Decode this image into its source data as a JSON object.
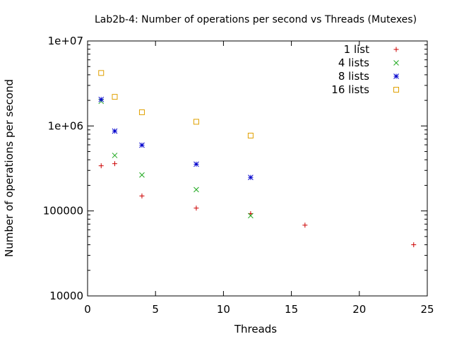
{
  "chart_data": {
    "type": "scatter",
    "title": "Lab2b-4: Number of operations per second vs Threads (Mutexes)",
    "xlabel": "Threads",
    "ylabel": "Number of operations per second",
    "xlim": [
      0,
      25
    ],
    "ylim": [
      10000,
      10000000
    ],
    "y_scale": "log",
    "x_ticks": [
      0,
      5,
      10,
      15,
      20,
      25
    ],
    "x_tick_labels": [
      "0",
      "5",
      "10",
      "15",
      "20",
      "25"
    ],
    "y_ticks": [
      10000,
      100000,
      1000000,
      10000000
    ],
    "y_tick_labels": [
      "10000",
      "100000",
      "1e+06",
      "1e+07"
    ],
    "grid": false,
    "legend_position": "top-right",
    "series": [
      {
        "name": "1 list",
        "marker": "plus",
        "color": "#cc0000",
        "points": [
          [
            1,
            340000
          ],
          [
            2,
            360000
          ],
          [
            4,
            150000
          ],
          [
            8,
            108000
          ],
          [
            12,
            93000
          ],
          [
            16,
            68000
          ],
          [
            24,
            40000
          ]
        ]
      },
      {
        "name": "4 lists",
        "marker": "cross",
        "color": "#22aa22",
        "points": [
          [
            1,
            1950000
          ],
          [
            2,
            450000
          ],
          [
            4,
            265000
          ],
          [
            8,
            178000
          ],
          [
            12,
            88000
          ]
        ]
      },
      {
        "name": "8 lists",
        "marker": "star",
        "color": "#0000cc",
        "points": [
          [
            1,
            2050000
          ],
          [
            2,
            870000
          ],
          [
            4,
            595000
          ],
          [
            8,
            355000
          ],
          [
            12,
            248000
          ]
        ]
      },
      {
        "name": "16 lists",
        "marker": "square",
        "color": "#e0a000",
        "points": [
          [
            1,
            4200000
          ],
          [
            2,
            2200000
          ],
          [
            4,
            1450000
          ],
          [
            8,
            1120000
          ],
          [
            12,
            770000
          ]
        ]
      }
    ]
  }
}
